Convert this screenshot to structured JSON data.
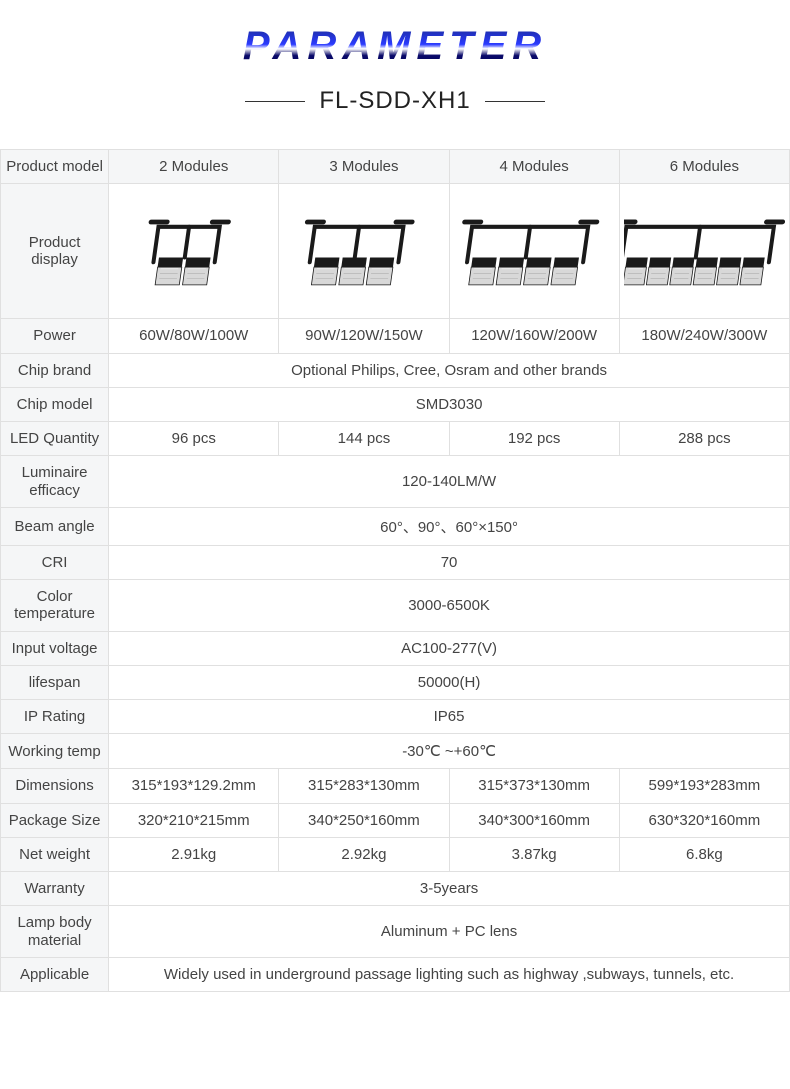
{
  "header": {
    "title": "PARAMETER",
    "subtitle": "FL-SDD-XH1"
  },
  "columns": [
    "2 Modules",
    "3 Modules",
    "4 Modules",
    "6 Modules"
  ],
  "rows": [
    {
      "label": "Product model",
      "type": "header"
    },
    {
      "label": "Product display",
      "type": "display"
    },
    {
      "label": "Power",
      "values": [
        "60W/80W/100W",
        "90W/120W/150W",
        "120W/160W/200W",
        "180W/240W/300W"
      ]
    },
    {
      "label": "Chip brand",
      "span": "Optional Philips, Cree, Osram and other brands"
    },
    {
      "label": "Chip model",
      "span": "SMD3030"
    },
    {
      "label": "LED Quantity",
      "values": [
        "96 pcs",
        "144 pcs",
        "192 pcs",
        "288 pcs"
      ]
    },
    {
      "label": "Luminaire efficacy",
      "span": "120-140LM/W"
    },
    {
      "label": "Beam angle",
      "span": "60°、90°、60°×150°"
    },
    {
      "label": "CRI",
      "span": "70"
    },
    {
      "label": "Color temperature",
      "span": "3000-6500K"
    },
    {
      "label": "Input voltage",
      "span": "AC100-277(V)"
    },
    {
      "label": "lifespan",
      "span": "50000(H)"
    },
    {
      "label": "IP Rating",
      "span": "IP65"
    },
    {
      "label": "Working temp",
      "span": "-30℃ ~+60℃"
    },
    {
      "label": "Dimensions",
      "values": [
        "315*193*129.2mm",
        "315*283*130mm",
        "315*373*130mm",
        "599*193*283mm"
      ]
    },
    {
      "label": "Package Size",
      "values": [
        "320*210*215mm",
        "340*250*160mm",
        "340*300*160mm",
        "630*320*160mm"
      ]
    },
    {
      "label": "Net weight",
      "values": [
        "2.91kg",
        "2.92kg",
        "3.87kg",
        "6.8kg"
      ]
    },
    {
      "label": "Warranty",
      "span": "3-5years"
    },
    {
      "label": "Lamp body material",
      "span": "Aluminum + PC lens"
    },
    {
      "label": "Applicable",
      "span": "Widely used in underground passage lighting such as highway ,subways, tunnels, etc."
    }
  ],
  "display_modules": [
    2,
    3,
    4,
    6
  ],
  "style": {
    "title_fontsize": 40,
    "title_letterspacing": 6,
    "title_gradient": [
      "#1a2a8a",
      "#2a3aff",
      "#ffffff",
      "#0a0a6a",
      "#000055"
    ],
    "subtitle_fontsize": 24,
    "subtitle_line_color": "#333333",
    "border_color": "#e0e0e0",
    "label_bg": "#f5f6f7",
    "cell_fontsize": 15,
    "text_color": "#444444",
    "light_body_color": "#1a1a1a",
    "light_panel_color": "#d8d8d8",
    "light_highlight": "#f0f0f0"
  }
}
